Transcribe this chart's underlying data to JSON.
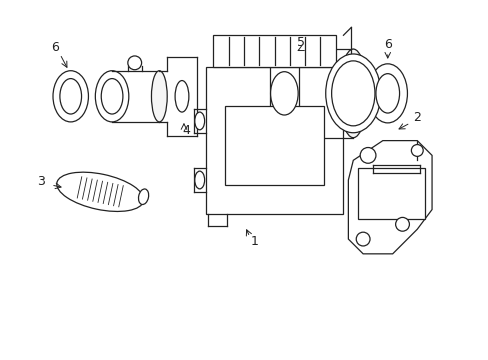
{
  "background_color": "#ffffff",
  "line_color": "#222222",
  "figure_width": 4.89,
  "figure_height": 3.6,
  "dpi": 100
}
